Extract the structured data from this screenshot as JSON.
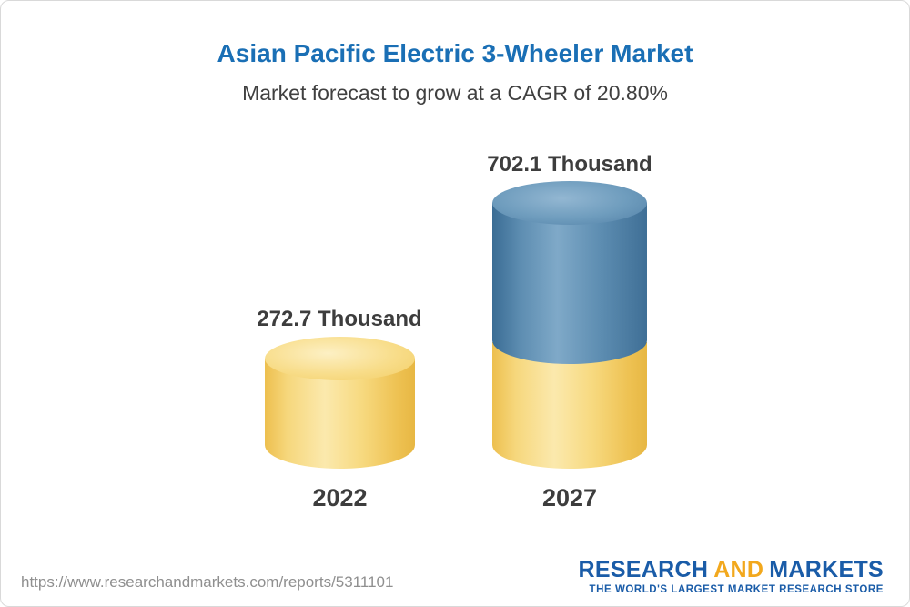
{
  "chart_data": {
    "type": "bar",
    "title": "Asian Pacific Electric 3-Wheeler Market",
    "subtitle": "Market forecast to grow at a CAGR of 20.80%",
    "unit": "Thousand",
    "categories": [
      "2022",
      "2027"
    ],
    "values": [
      272.7,
      702.1
    ],
    "value_labels": [
      "272.7 Thousand",
      "702.1 Thousand"
    ],
    "ylim": [
      0,
      750
    ],
    "grid": false,
    "legend": "none",
    "colors": {
      "bar_2022": "#F5CF6A",
      "bar_2027_growth": "#4E80A8",
      "title_accent": "#1A6FB5"
    }
  },
  "footer": {
    "url": "https://www.researchandmarkets.com/reports/5311101",
    "logo": {
      "word1": "RESEARCH",
      "word2": "AND",
      "word3": "MARKETS",
      "tagline": "THE WORLD'S LARGEST MARKET RESEARCH STORE"
    }
  }
}
